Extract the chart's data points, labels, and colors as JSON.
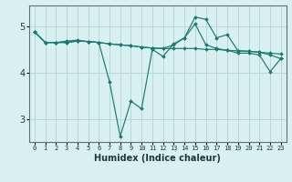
{
  "xlabel": "Humidex (Indice chaleur)",
  "bg_color": "#d8f0f0",
  "grid_color": "#b8d8d8",
  "line_color": "#1a7a6e",
  "x_ticks": [
    0,
    1,
    2,
    3,
    4,
    5,
    6,
    7,
    8,
    9,
    10,
    11,
    12,
    13,
    14,
    15,
    16,
    17,
    18,
    19,
    20,
    21,
    22,
    23
  ],
  "y_ticks": [
    3,
    4,
    5
  ],
  "ylim": [
    2.5,
    5.45
  ],
  "xlim": [
    -0.5,
    23.5
  ],
  "series": [
    [
      4.88,
      4.65,
      4.65,
      4.65,
      4.68,
      4.67,
      4.65,
      4.62,
      4.6,
      4.58,
      4.55,
      4.53,
      4.52,
      4.52,
      4.52,
      4.52,
      4.5,
      4.5,
      4.48,
      4.47,
      4.46,
      4.44,
      4.42,
      4.4
    ],
    [
      4.88,
      4.65,
      4.65,
      4.65,
      4.68,
      4.67,
      4.65,
      3.8,
      2.62,
      3.38,
      3.22,
      4.5,
      4.35,
      4.62,
      4.75,
      5.05,
      4.6,
      4.52,
      4.48,
      4.42,
      4.42,
      4.38,
      4.02,
      4.3
    ],
    [
      4.88,
      4.65,
      4.65,
      4.68,
      4.7,
      4.67,
      4.65,
      4.62,
      4.6,
      4.58,
      4.55,
      4.53,
      4.52,
      4.6,
      4.75,
      5.2,
      5.15,
      4.75,
      4.82,
      4.47,
      4.46,
      4.44,
      4.38,
      4.3
    ]
  ]
}
